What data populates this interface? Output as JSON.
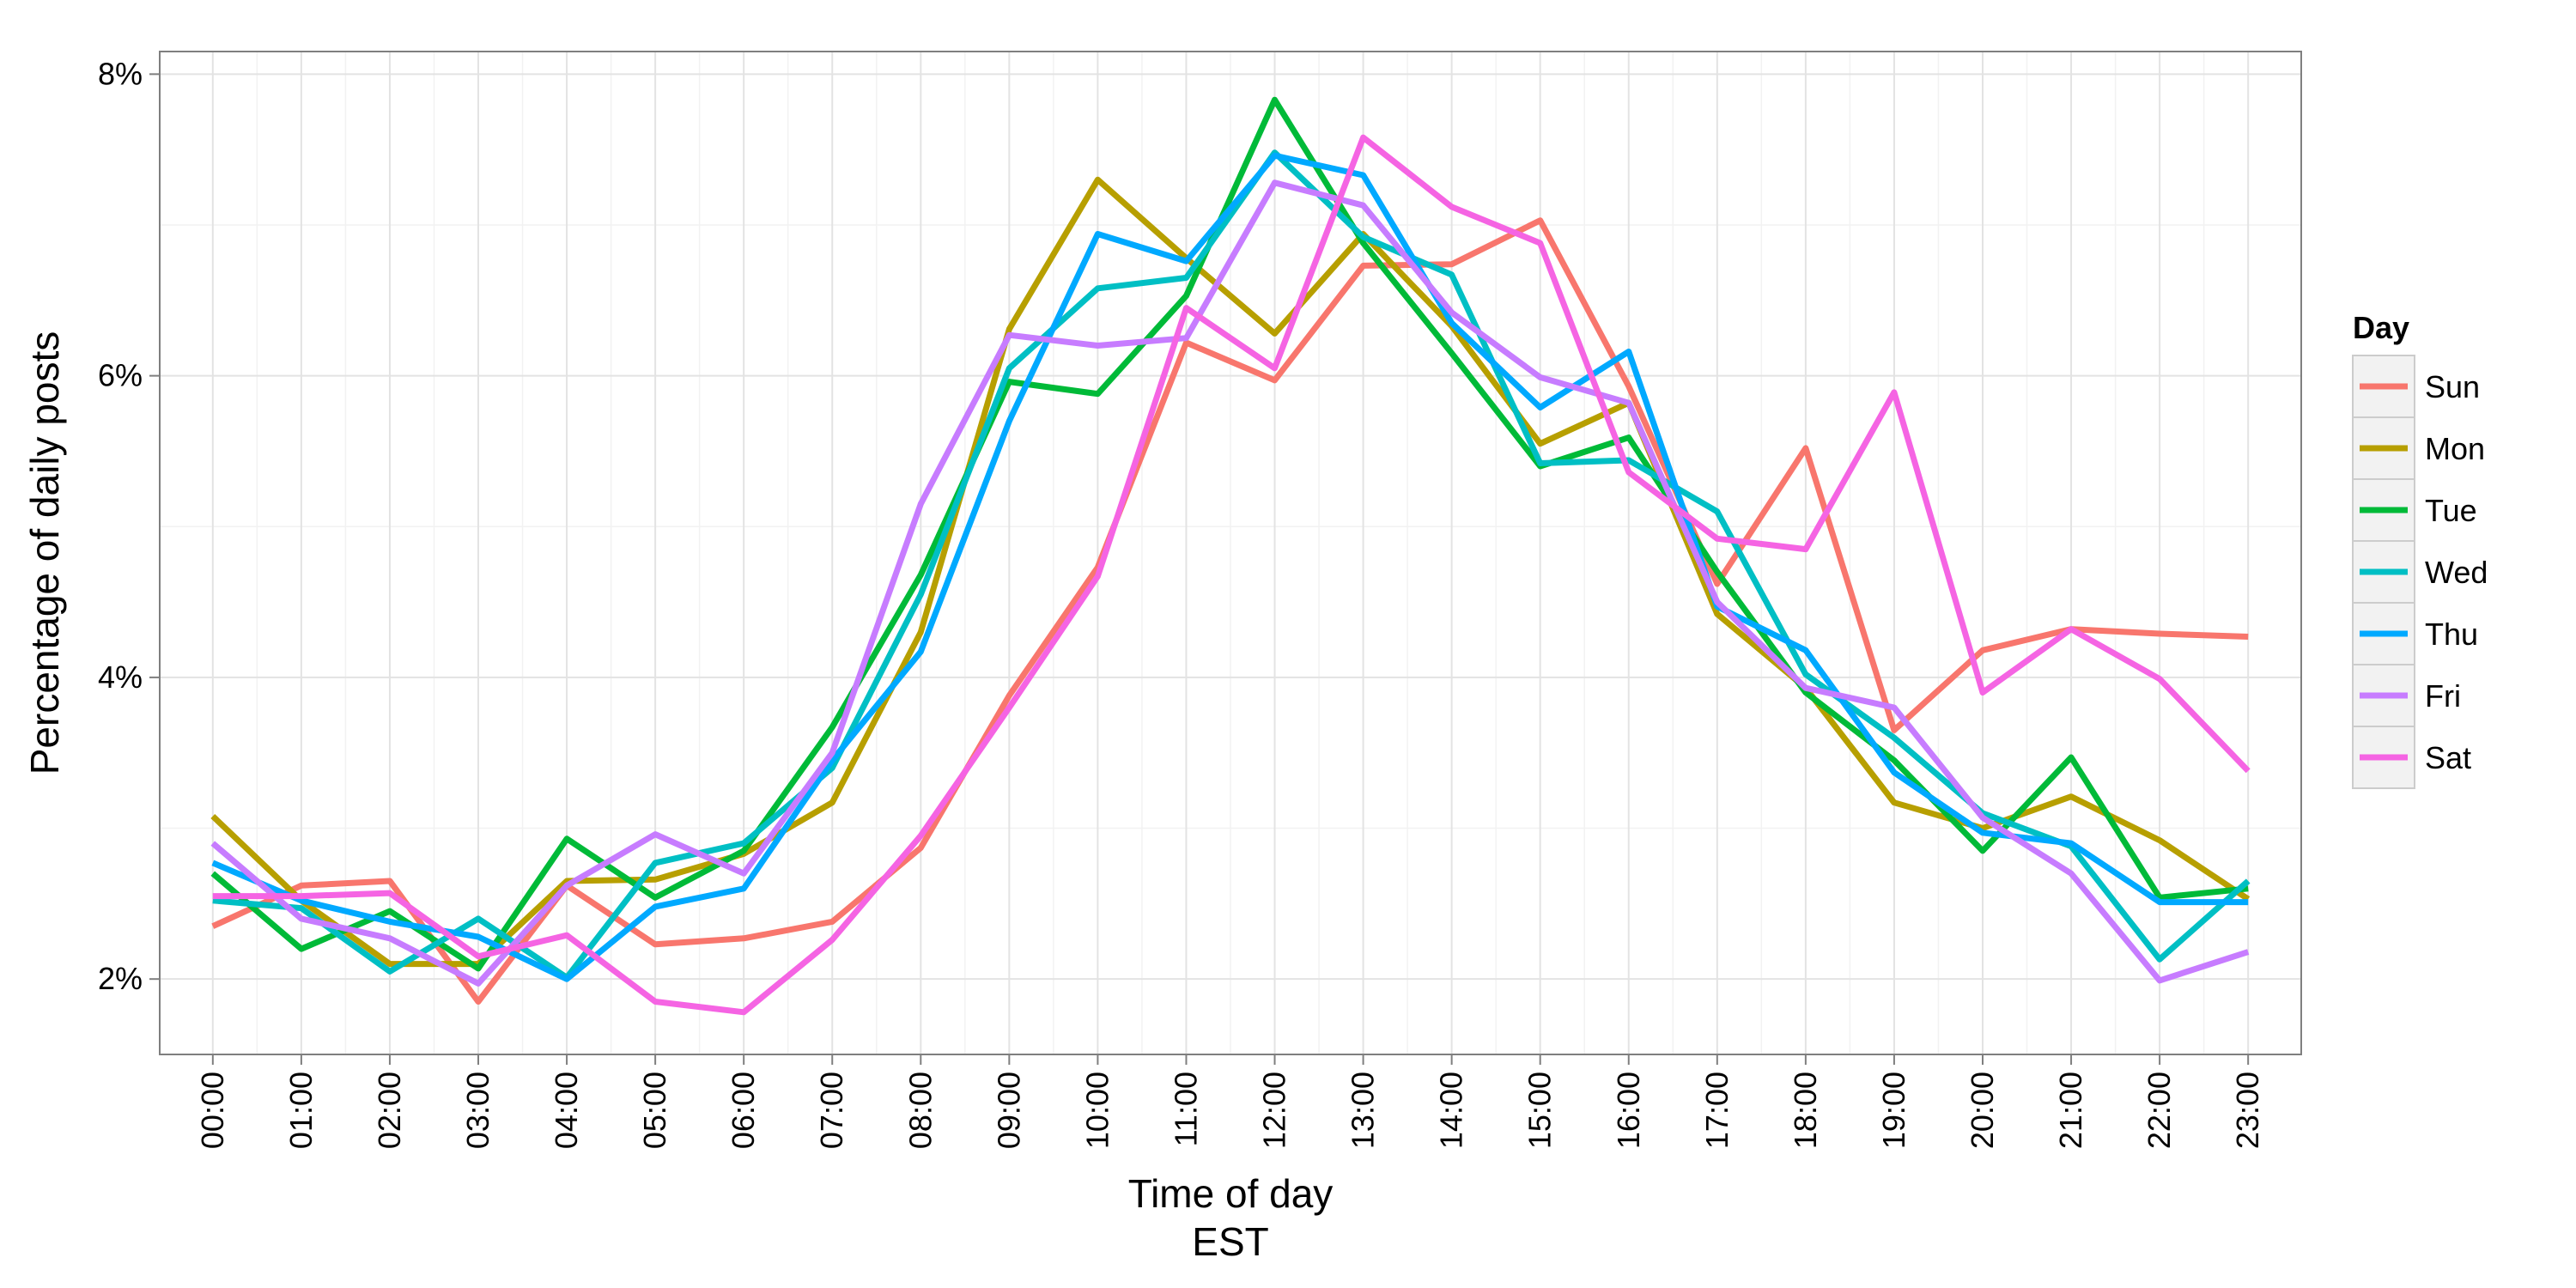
{
  "chart_data": {
    "type": "line",
    "title": "",
    "xlabel": "Time of day",
    "xlabel_sub": "EST",
    "ylabel": "Percentage of daily posts",
    "ylim": [
      1.5,
      8.15
    ],
    "y_ticks": [
      2,
      4,
      6,
      8
    ],
    "y_tick_labels": [
      "2%",
      "4%",
      "6%",
      "8%"
    ],
    "grid": true,
    "legend_position": "right",
    "legend_title": "Day",
    "categories": [
      "00:00",
      "01:00",
      "02:00",
      "03:00",
      "04:00",
      "05:00",
      "06:00",
      "07:00",
      "08:00",
      "09:00",
      "10:00",
      "11:00",
      "12:00",
      "13:00",
      "14:00",
      "15:00",
      "16:00",
      "17:00",
      "18:00",
      "19:00",
      "20:00",
      "21:00",
      "22:00",
      "23:00"
    ],
    "series": [
      {
        "name": "Sun",
        "color": "#F8766D",
        "values": [
          2.35,
          2.62,
          2.65,
          1.85,
          2.62,
          2.23,
          2.27,
          2.38,
          2.87,
          3.88,
          4.73,
          6.22,
          5.97,
          6.73,
          6.74,
          7.03,
          5.93,
          4.62,
          5.52,
          3.65,
          4.18,
          4.32,
          4.29,
          4.27
        ]
      },
      {
        "name": "Mon",
        "color": "#B79F00",
        "values": [
          3.08,
          2.52,
          2.1,
          2.1,
          2.65,
          2.66,
          2.83,
          3.17,
          4.3,
          6.31,
          7.3,
          6.78,
          6.28,
          6.94,
          6.33,
          5.55,
          5.82,
          4.42,
          3.93,
          3.17,
          3.0,
          3.21,
          2.92,
          2.53
        ]
      },
      {
        "name": "Tue",
        "color": "#00BA38",
        "values": [
          2.7,
          2.2,
          2.45,
          2.07,
          2.93,
          2.54,
          2.85,
          3.67,
          4.68,
          5.96,
          5.88,
          6.53,
          7.83,
          6.88,
          6.15,
          5.4,
          5.59,
          4.7,
          3.9,
          3.45,
          2.85,
          3.47,
          2.54,
          2.6
        ]
      },
      {
        "name": "Wed",
        "color": "#00BFC4",
        "values": [
          2.52,
          2.47,
          2.05,
          2.4,
          2.01,
          2.77,
          2.9,
          3.4,
          4.55,
          6.05,
          6.58,
          6.65,
          7.48,
          6.92,
          6.67,
          5.42,
          5.44,
          5.1,
          4.02,
          3.6,
          3.1,
          2.88,
          2.13,
          2.65
        ]
      },
      {
        "name": "Thu",
        "color": "#00A9FF",
        "values": [
          2.77,
          2.52,
          2.38,
          2.28,
          2.0,
          2.48,
          2.6,
          3.45,
          4.17,
          5.7,
          6.94,
          6.76,
          7.46,
          7.33,
          6.35,
          5.79,
          6.16,
          4.47,
          4.18,
          3.37,
          2.97,
          2.9,
          2.51,
          2.51
        ]
      },
      {
        "name": "Fri",
        "color": "#C77CFF",
        "values": [
          2.9,
          2.4,
          2.27,
          1.97,
          2.62,
          2.96,
          2.7,
          3.5,
          5.15,
          6.27,
          6.2,
          6.25,
          7.28,
          7.13,
          6.42,
          5.99,
          5.82,
          4.5,
          3.93,
          3.8,
          3.07,
          2.7,
          1.99,
          2.18
        ]
      },
      {
        "name": "Sat",
        "color": "#F564E3",
        "values": [
          2.55,
          2.55,
          2.57,
          2.15,
          2.29,
          1.85,
          1.78,
          2.26,
          2.95,
          3.8,
          4.67,
          6.45,
          6.05,
          7.58,
          7.12,
          6.88,
          5.36,
          4.92,
          4.85,
          5.89,
          3.9,
          4.32,
          3.99,
          3.38
        ]
      }
    ]
  }
}
